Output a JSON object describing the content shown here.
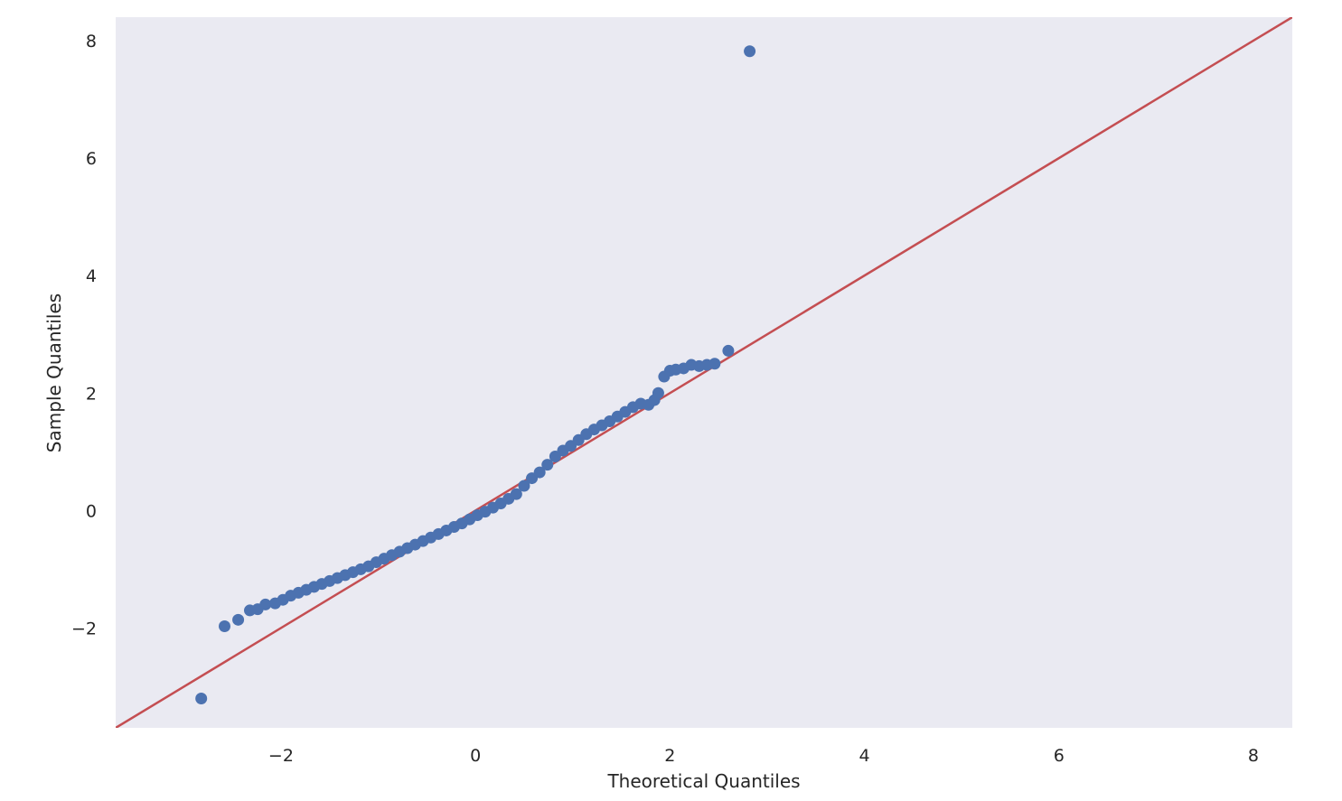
{
  "chart_data": {
    "type": "scatter",
    "title": "",
    "xlabel": "Theoretical Quantiles",
    "ylabel": "Sample Quantiles",
    "xlim": [
      -3.7,
      8.4
    ],
    "ylim": [
      -3.7,
      8.4
    ],
    "xticks": [
      -2,
      0,
      2,
      4,
      6,
      8
    ],
    "yticks": [
      -2,
      0,
      2,
      4,
      6,
      8
    ],
    "xtick_labels": [
      "−2",
      "0",
      "2",
      "4",
      "6",
      "8"
    ],
    "ytick_labels": [
      "−2",
      "0",
      "2",
      "4",
      "6",
      "8"
    ],
    "grid": false,
    "legend": null,
    "colors": {
      "background": "#eaeaf2",
      "points": "#4c72b0",
      "line": "#c44e52"
    },
    "reference_line": {
      "slope": 1,
      "intercept": 0,
      "color": "#c44e52"
    },
    "points": {
      "x": [
        -2.82,
        -2.58,
        -2.44,
        -2.32,
        -2.24,
        -2.16,
        -2.06,
        -1.98,
        -1.9,
        -1.82,
        -1.74,
        -1.66,
        -1.58,
        -1.5,
        -1.42,
        -1.34,
        -1.26,
        -1.18,
        -1.1,
        -1.02,
        -0.94,
        -0.86,
        -0.78,
        -0.7,
        -0.62,
        -0.54,
        -0.46,
        -0.38,
        -0.3,
        -0.22,
        -0.14,
        -0.06,
        0.02,
        0.1,
        0.18,
        0.26,
        0.34,
        0.42,
        0.5,
        0.58,
        0.66,
        0.74,
        0.82,
        0.9,
        0.98,
        1.06,
        1.14,
        1.22,
        1.3,
        1.38,
        1.46,
        1.54,
        1.62,
        1.7,
        1.78,
        1.84,
        1.88,
        1.94,
        2.0,
        2.06,
        2.14,
        2.22,
        2.3,
        2.38,
        2.46,
        2.6,
        2.82
      ],
      "y": [
        -3.2,
        -1.97,
        -1.86,
        -1.7,
        -1.68,
        -1.6,
        -1.58,
        -1.52,
        -1.45,
        -1.4,
        -1.35,
        -1.3,
        -1.25,
        -1.2,
        -1.15,
        -1.1,
        -1.05,
        -1.0,
        -0.95,
        -0.88,
        -0.82,
        -0.76,
        -0.7,
        -0.64,
        -0.58,
        -0.52,
        -0.46,
        -0.4,
        -0.34,
        -0.28,
        -0.22,
        -0.15,
        -0.08,
        -0.02,
        0.05,
        0.12,
        0.2,
        0.28,
        0.42,
        0.55,
        0.65,
        0.78,
        0.92,
        1.02,
        1.1,
        1.2,
        1.3,
        1.38,
        1.45,
        1.52,
        1.6,
        1.68,
        1.76,
        1.82,
        1.8,
        1.88,
        2.0,
        2.28,
        2.38,
        2.4,
        2.42,
        2.48,
        2.46,
        2.48,
        2.5,
        2.72,
        7.82
      ]
    }
  }
}
